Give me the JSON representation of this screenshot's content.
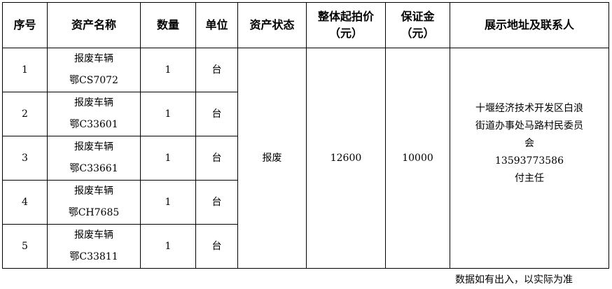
{
  "headers": [
    "序号",
    "资产名称",
    "数量",
    "单位",
    "资产状态",
    [
      "整体起拍价",
      "（元）"
    ],
    [
      "保证金",
      "（元）"
    ],
    "展示地址及联系人"
  ],
  "rows": [
    {
      "no": "1",
      "name": "报废车辆",
      "plate": "鄂CS7072",
      "qty": "1",
      "unit": "台"
    },
    {
      "no": "2",
      "name": "报废车辆",
      "plate": "鄂C33601",
      "qty": "1",
      "unit": "台"
    },
    {
      "no": "3",
      "name": "报废车辆",
      "plate": "鄂C33661",
      "qty": "1",
      "unit": "台"
    },
    {
      "no": "4",
      "name": "报废车辆",
      "plate": "鄂CH7685",
      "qty": "1",
      "unit": "台"
    },
    {
      "no": "5",
      "name": "报废车辆",
      "plate": "鄂C33811",
      "qty": "1",
      "unit": "台"
    }
  ],
  "shared": {
    "status": "报废",
    "start_price": "12600",
    "deposit": "10000",
    "address_lines": [
      "十堰经济技术开发区白浪",
      "街道办事处马路村民委员",
      "会"
    ],
    "phone": "13593773586",
    "contact": "付主任"
  },
  "note": "数据如有出入，以实际为准"
}
